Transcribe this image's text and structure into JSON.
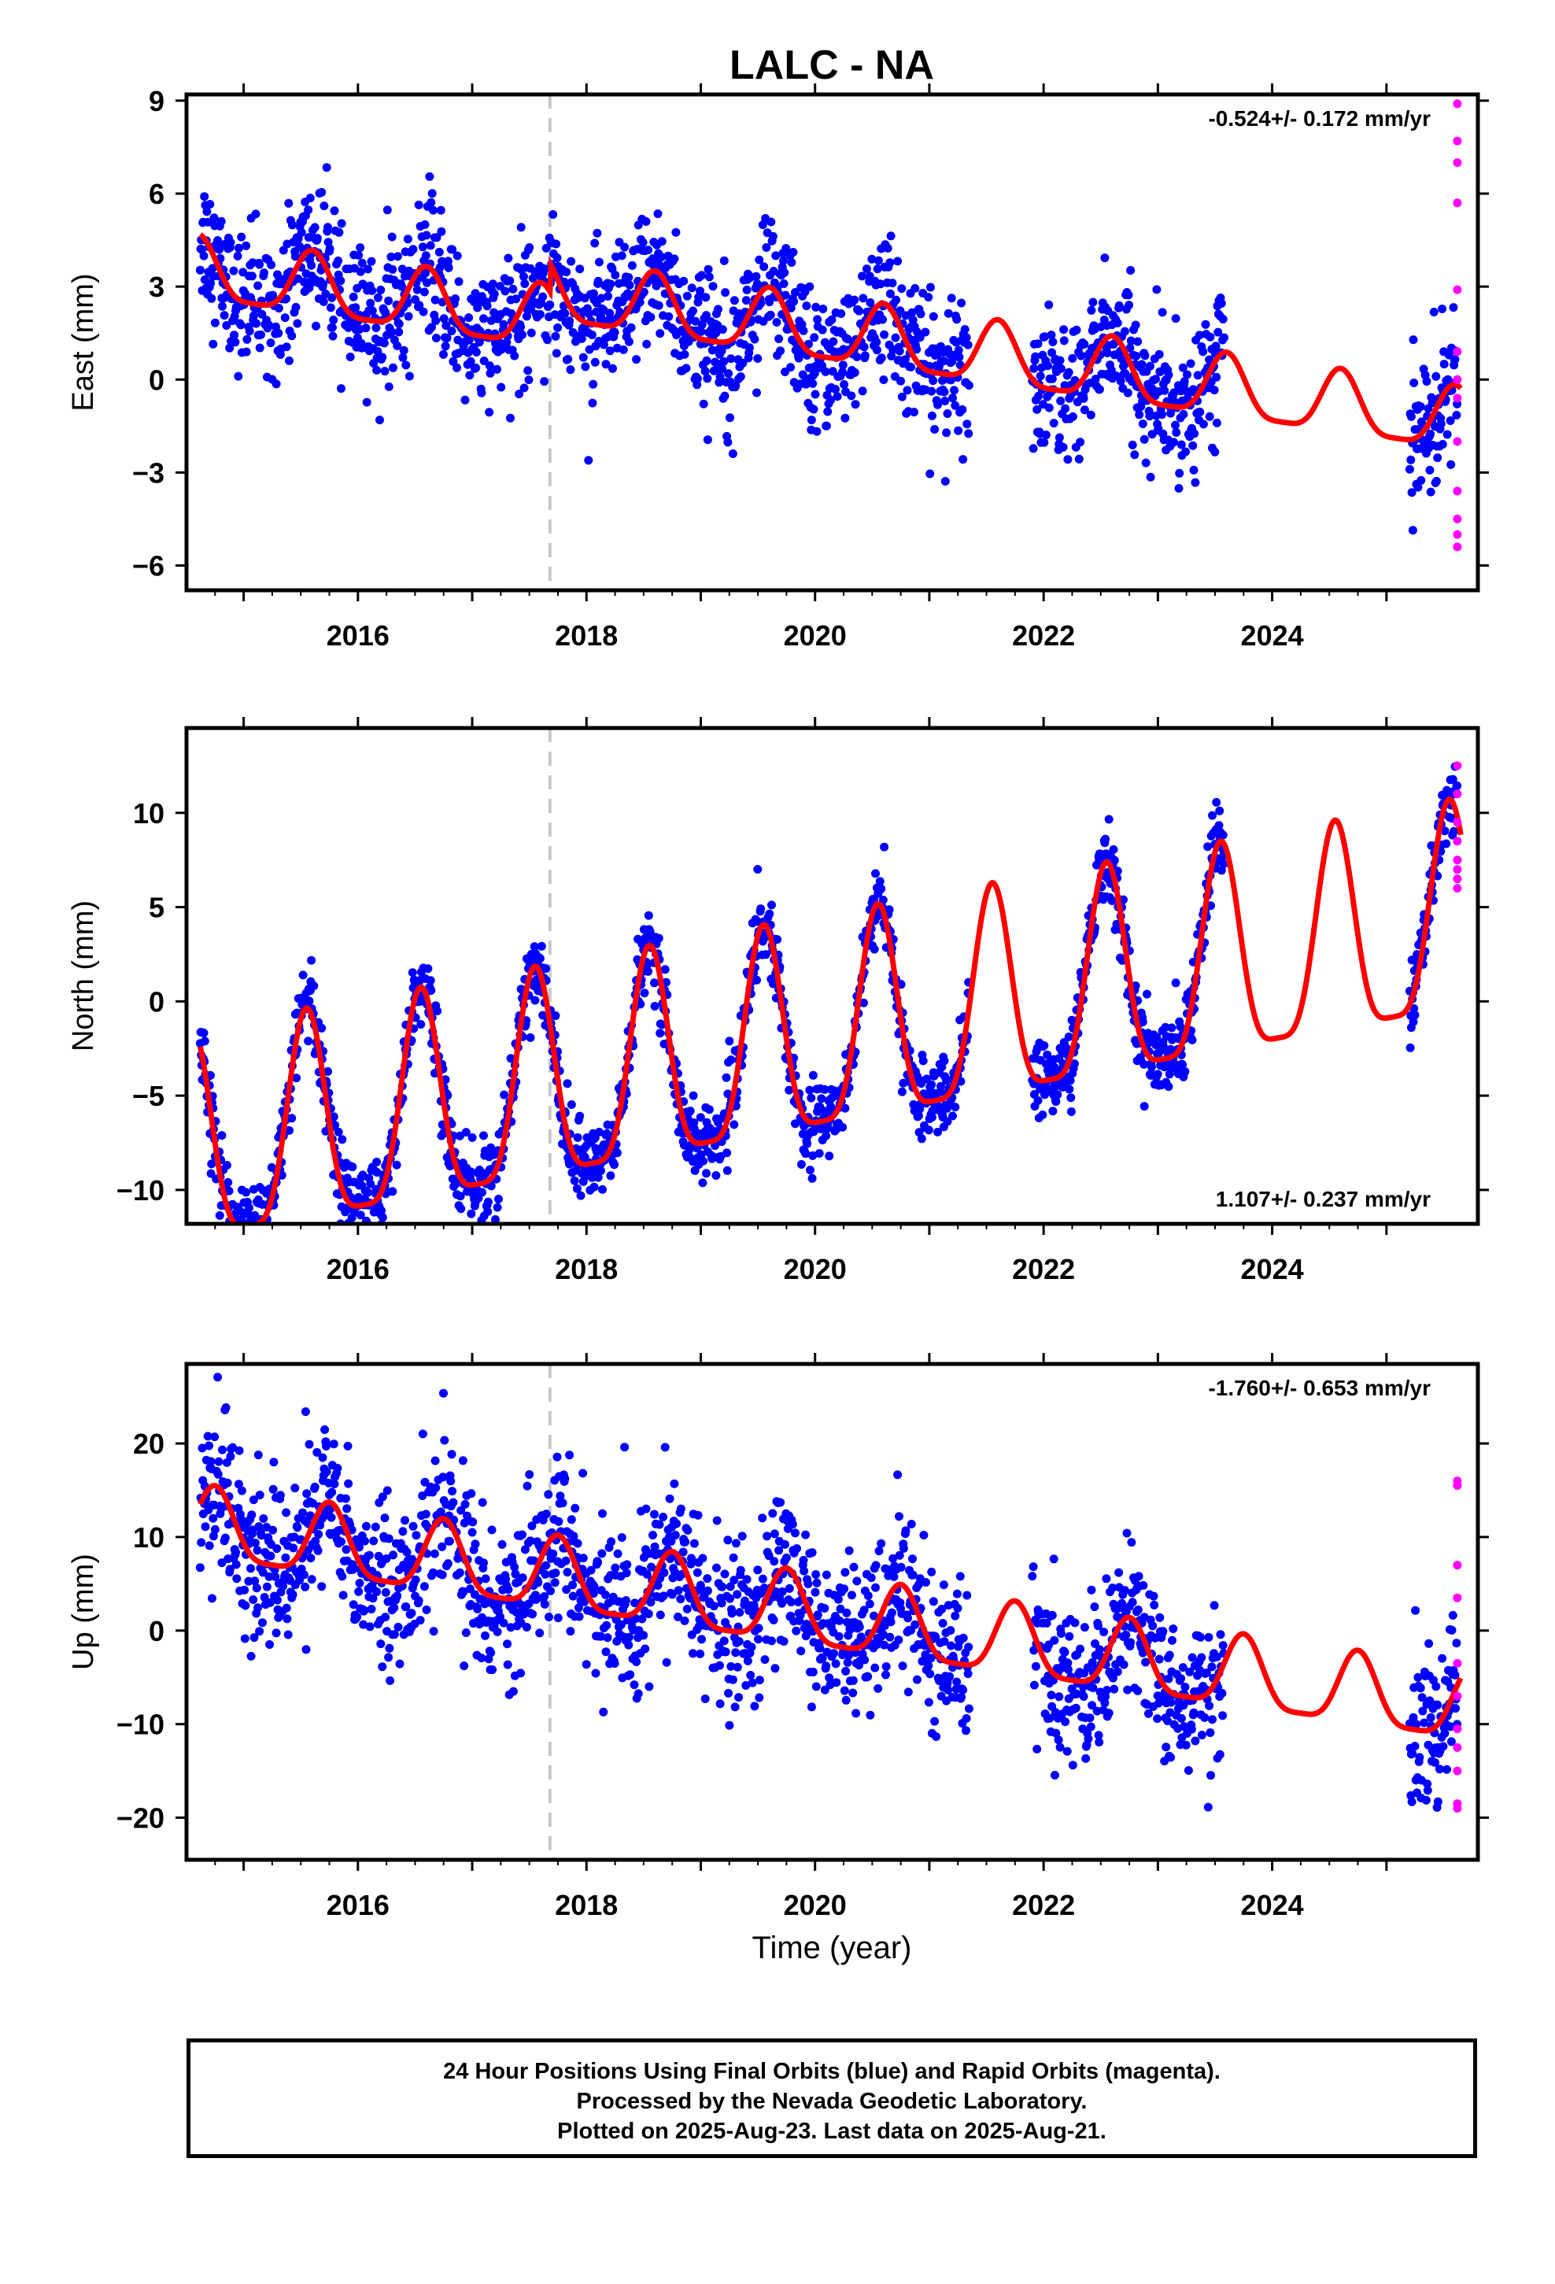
{
  "chart_data": {
    "type": "scatter",
    "title": "LALC - NA",
    "xlabel": "Time (year)",
    "x_range": [
      2014.5,
      2025.8
    ],
    "x_ticks": [
      "2016",
      "2018",
      "2020",
      "2022",
      "2024"
    ],
    "vertical_marker_year": 2017.68,
    "series_legend": [
      "24 Hour Positions Using Final Orbits (blue)",
      "Rapid Orbits (magenta)",
      "model fit (red)"
    ],
    "panels": [
      {
        "ylabel": "East (mm)",
        "ylim": [
          -6.8,
          9.2
        ],
        "yticks": [
          -6,
          -3,
          0,
          3,
          6,
          9
        ],
        "rate_label": "-0.524+/- 0.172 mm/yr",
        "rate_position": "top-right",
        "fit": {
          "offset": 0.62,
          "rate": -0.524,
          "annual_amp": 1.0,
          "annual_phase_peak": 0.6,
          "steps": [
            [
              2017.68,
              0.9
            ]
          ]
        },
        "scatter_sd": 1.1,
        "rapid_points": [
          8.9,
          7.7,
          7.0,
          5.7,
          2.9,
          0.9,
          0.0,
          -0.6,
          -2.0,
          -3.6,
          -4.5,
          -5.0,
          -5.4
        ]
      },
      {
        "ylabel": "North (mm)",
        "ylim": [
          -11.8,
          14.5
        ],
        "yticks": [
          -10,
          -5,
          0,
          5,
          10
        ],
        "rate_label": "1.107+/- 0.237 mm/yr",
        "rate_position": "bottom-right",
        "fit": {
          "offset": -2.3,
          "rate": 1.107,
          "annual_amp": 5.5,
          "annual_phase_peak": 0.55,
          "steps": []
        },
        "scatter_sd": 1.0,
        "rapid_points": [
          12.5,
          11.0,
          9.5,
          8.5,
          7.5,
          7.0,
          6.5,
          6.0
        ]
      },
      {
        "ylabel": "Up (mm)",
        "ylim": [
          -24.5,
          28.5
        ],
        "yticks": [
          -20,
          -10,
          0,
          10,
          20
        ],
        "rate_label": "-1.760+/- 0.653 mm/yr",
        "rate_position": "top-right",
        "fit": {
          "offset": 1.5,
          "rate": -1.76,
          "annual_amp": 3.8,
          "annual_phase_peak": 0.75,
          "steps": []
        },
        "scatter_sd": 4.2,
        "rapid_points": [
          16.0,
          15.5,
          7.0,
          3.5,
          -3.5,
          -7.0,
          -10.5,
          -12.5,
          -15.0,
          -18.5,
          -19.0
        ]
      }
    ],
    "data_gaps": [
      [
        2021.35,
        2021.9
      ],
      [
        2023.58,
        2025.2
      ]
    ],
    "colors": {
      "final": "#0000ff",
      "rapid": "#ff00ff",
      "fit": "#ff0000",
      "marker": "#c8c8c8"
    }
  },
  "footer": {
    "line1": "24 Hour Positions Using Final Orbits (blue) and Rapid Orbits (magenta).",
    "line2": "Processed by the Nevada Geodetic Laboratory.",
    "line3": "Plotted on 2025-Aug-23. Last data on 2025-Aug-21."
  }
}
